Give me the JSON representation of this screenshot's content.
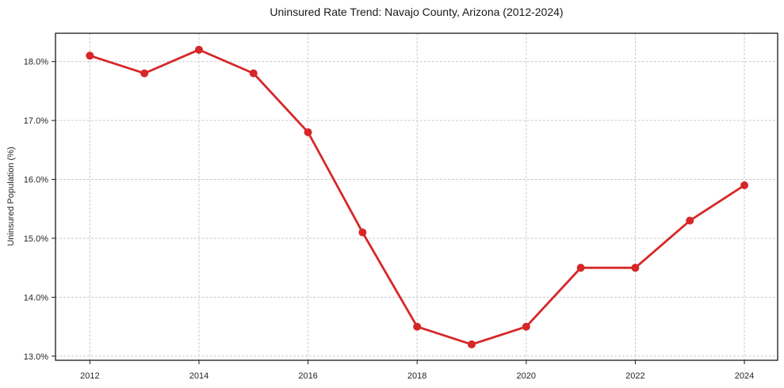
{
  "chart_data": {
    "type": "line",
    "title": "Uninsured Rate Trend: Navajo County, Arizona (2012-2024)",
    "xlabel": "",
    "ylabel": "Uninsured Population (%)",
    "x": [
      2012,
      2013,
      2014,
      2015,
      2016,
      2017,
      2018,
      2019,
      2020,
      2021,
      2022,
      2023,
      2024
    ],
    "series": [
      {
        "name": "Uninsured rate",
        "values": [
          18.1,
          17.8,
          18.2,
          17.8,
          16.8,
          15.1,
          13.5,
          13.2,
          13.5,
          14.5,
          14.5,
          15.3,
          15.9
        ]
      }
    ],
    "xlim": [
      2011.37,
      2024.61
    ],
    "ylim": [
      12.93,
      18.48
    ],
    "xticks": {
      "values": [
        2012,
        2014,
        2016,
        2018,
        2020,
        2022,
        2024
      ],
      "labels": [
        "2012",
        "2014",
        "2016",
        "2018",
        "2020",
        "2022",
        "2024"
      ]
    },
    "yticks": {
      "values": [
        13,
        14,
        15,
        16,
        17,
        18
      ],
      "labels": [
        "13.0%",
        "14.0%",
        "15.0%",
        "16.0%",
        "17.0%",
        "18.0%"
      ]
    },
    "grid": true,
    "legend": false,
    "line_color": "#d62728",
    "marker": "circle",
    "marker_radius": 5,
    "line_width": 2.8,
    "grid_color": "#cccccc",
    "spine_color": "#1a1a1a",
    "tick_label_color": "#262626"
  }
}
